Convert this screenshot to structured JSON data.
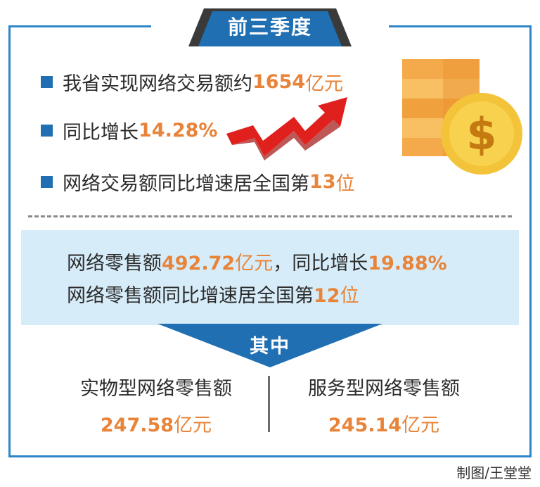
{
  "title": "前三季度",
  "bullets": [
    {
      "prefix": "我省实现网络交易额约",
      "value": "1654",
      "unit": "亿元"
    },
    {
      "prefix": "同比增长",
      "value": "14.28%",
      "unit": ""
    },
    {
      "prefix": "网络交易额同比增速居全国第",
      "value": "13",
      "unit": "位"
    }
  ],
  "retail": {
    "line1_prefix": "网络零售额",
    "line1_value": "492.72",
    "line1_unit": "亿元",
    "line1_mid": "，同比增长",
    "line1_growth": "19.88%",
    "line2_prefix": "网络零售额同比增速居全国第",
    "line2_value": "12",
    "line2_unit": "位"
  },
  "subheading": "其中",
  "breakdown": [
    {
      "label": "实物型网络零售额",
      "value": "247.58",
      "unit": "亿元"
    },
    {
      "label": "服务型网络零售额",
      "value": "245.14",
      "unit": "亿元"
    }
  ],
  "credit": "制图/王堂堂",
  "colors": {
    "accent_blue": "#1f6fb2",
    "frame_blue": "#2e86c8",
    "highlight_orange": "#e8843a",
    "panel_blue": "#d7ecf9",
    "arrow_red": "#e0201c"
  },
  "icons": [
    "coin-stack-icon",
    "dollar-coin-icon",
    "rising-arrow-icon"
  ]
}
